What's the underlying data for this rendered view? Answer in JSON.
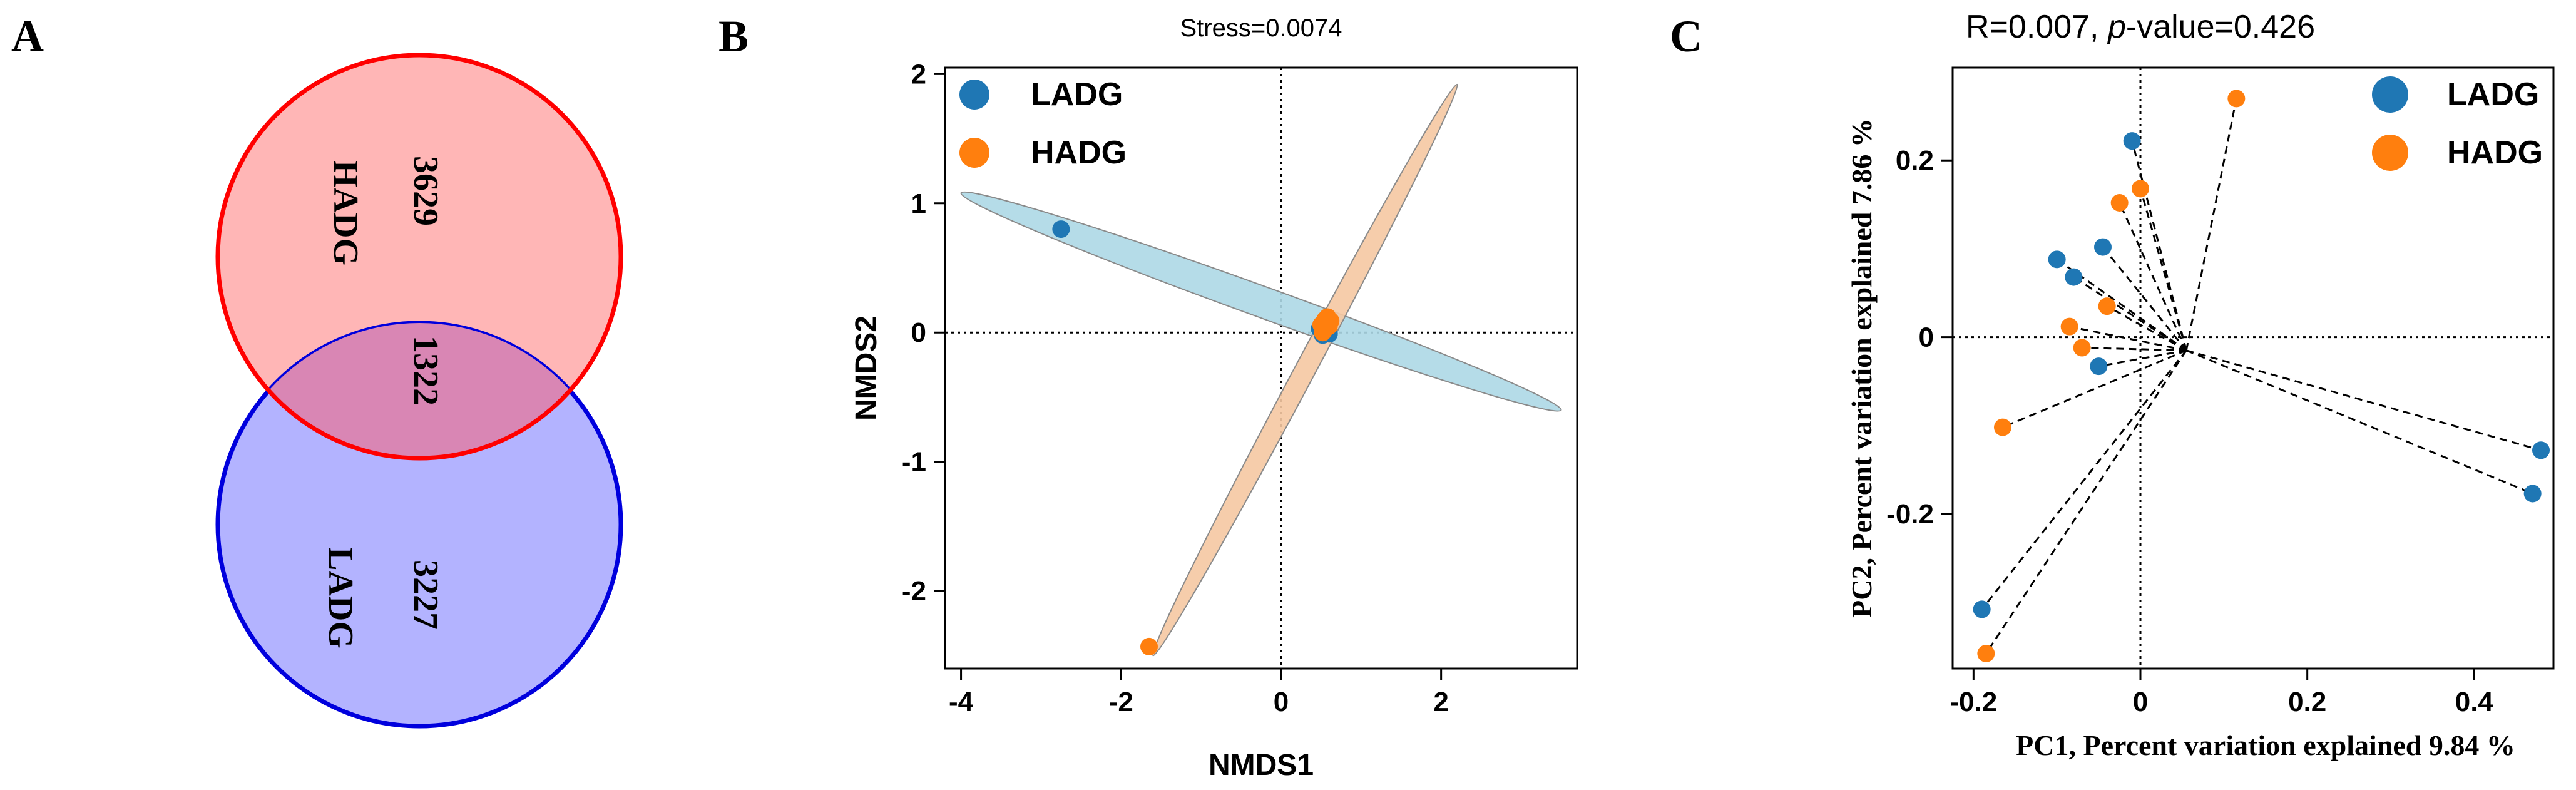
{
  "colors": {
    "ladg": "#1f77b4",
    "hadg": "#ff7f0e",
    "ladg_ellipse_fill": "#add8e6",
    "hadg_ellipse_fill": "#f5c8a2",
    "venn_hadg_fill": "#ffb6b6",
    "venn_hadg_stroke": "#ff0000",
    "venn_ladg_fill": "#b3b3ff",
    "venn_ladg_stroke": "#0000dd",
    "venn_overlap_fill": "#d986b4"
  },
  "panels": {
    "a": {
      "letter": "A"
    },
    "b": {
      "letter": "B"
    },
    "c": {
      "letter": "C"
    }
  },
  "chart_data": [
    {
      "type": "venn",
      "panel": "A",
      "sets": [
        {
          "name": "HADG",
          "unique": "3629"
        },
        {
          "name": "LADG",
          "unique": "3227"
        }
      ],
      "intersection": "1322"
    },
    {
      "type": "scatter",
      "panel": "B",
      "title": "Stress=0.0074",
      "xlabel": "NMDS1",
      "ylabel": "NMDS2",
      "xlim": [
        -4.2,
        3.7
      ],
      "ylim": [
        -2.6,
        2.05
      ],
      "xticks": [
        -4,
        -2,
        0,
        2
      ],
      "yticks": [
        2,
        1,
        0,
        -1,
        -2
      ],
      "xtick_labels": [
        "-4",
        "-2",
        "0",
        "2"
      ],
      "ytick_labels": [
        "2",
        "1",
        "0",
        "-1",
        "-2"
      ],
      "reference_lines": {
        "x": 0,
        "y": 0,
        "style": "dotted"
      },
      "legend": [
        "LADG",
        "HADG"
      ],
      "series": [
        {
          "name": "LADG",
          "points": [
            [
              -2.75,
              0.8
            ],
            [
              0.5,
              0.05
            ],
            [
              0.55,
              0.02
            ],
            [
              0.52,
              -0.02
            ],
            [
              0.58,
              0.0
            ],
            [
              0.48,
              0.03
            ],
            [
              0.6,
              -0.01
            ],
            [
              0.53,
              0.04
            ],
            [
              0.56,
              0.01
            ]
          ],
          "ellipse": {
            "center": [
              -0.3,
              0.25
            ],
            "end1": [
              -4.0,
              1.08
            ],
            "end2": [
              3.5,
              -0.6
            ],
            "minor_half_width": 0.12
          }
        },
        {
          "name": "HADG",
          "points": [
            [
              -1.65,
              -2.43
            ],
            [
              0.55,
              0.1
            ],
            [
              0.6,
              0.05
            ],
            [
              0.52,
              0.0
            ],
            [
              0.58,
              0.12
            ],
            [
              0.5,
              0.06
            ],
            [
              0.57,
              0.08
            ],
            [
              0.54,
              0.02
            ],
            [
              0.62,
              0.09
            ]
          ],
          "ellipse": {
            "center": [
              0.3,
              -0.28
            ],
            "end1": [
              -1.6,
              -2.5
            ],
            "end2": [
              2.2,
              1.92
            ],
            "minor_half_width": 0.08
          }
        }
      ]
    },
    {
      "type": "scatter",
      "panel": "C",
      "title_prefix": "R=0.007, ",
      "title_italic": "p",
      "title_suffix": "-value=0.426",
      "xlabel": "PC1, Percent variation explained 9.84 %",
      "ylabel": "PC2, Percent variation explained 7.86 %",
      "xlim": [
        -0.225,
        0.495
      ],
      "ylim": [
        -0.375,
        0.305
      ],
      "xticks": [
        -0.2,
        0,
        0.2,
        0.4
      ],
      "yticks": [
        0.2,
        0,
        -0.2
      ],
      "xtick_labels": [
        "-0.2",
        "0",
        "0.2",
        "0.4"
      ],
      "ytick_labels": [
        "0.2",
        "0",
        "-0.2"
      ],
      "reference_lines": {
        "x": 0,
        "y": 0,
        "style": "dotted"
      },
      "centroid": [
        0.055,
        -0.015
      ],
      "legend": [
        "LADG",
        "HADG"
      ],
      "series": [
        {
          "name": "LADG",
          "points": [
            [
              -0.01,
              0.222
            ],
            [
              -0.045,
              0.102
            ],
            [
              -0.1,
              0.088
            ],
            [
              -0.08,
              0.068
            ],
            [
              -0.05,
              -0.033
            ],
            [
              0.47,
              -0.177
            ],
            [
              0.48,
              -0.128
            ],
            [
              -0.19,
              -0.308
            ]
          ]
        },
        {
          "name": "HADG",
          "points": [
            [
              0.115,
              0.27
            ],
            [
              0.0,
              0.168
            ],
            [
              -0.025,
              0.152
            ],
            [
              -0.04,
              0.035
            ],
            [
              -0.085,
              0.012
            ],
            [
              -0.07,
              -0.012
            ],
            [
              -0.165,
              -0.102
            ],
            [
              -0.185,
              -0.358
            ]
          ]
        }
      ]
    }
  ]
}
